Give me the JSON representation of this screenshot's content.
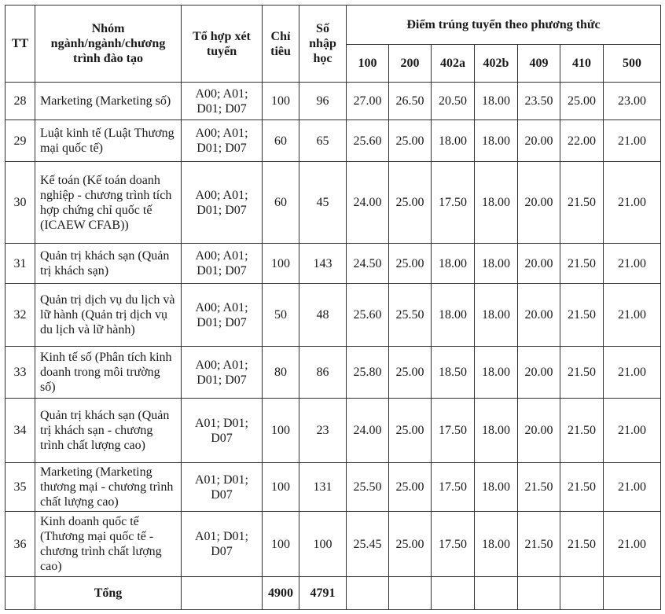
{
  "header": {
    "tt": "TT",
    "program": "Nhóm ngành/ngành/chương trình đào tạo",
    "combo": "Tổ hợp xét tuyển",
    "quota": "Chỉ tiêu",
    "enrolled": "Số nhập học",
    "scores_group": "Điểm trúng tuyển theo phương thức",
    "methods": [
      "100",
      "200",
      "402a",
      "402b",
      "409",
      "410",
      "500"
    ]
  },
  "rows": [
    {
      "tt": "28",
      "program": "Marketing (Marketing số)",
      "combo": "A00; A01; D01; D07",
      "quota": "100",
      "enrolled": "96",
      "scores": [
        "27.00",
        "26.50",
        "20.50",
        "18.00",
        "23.50",
        "25.00",
        "23.00"
      ]
    },
    {
      "tt": "29",
      "program": "Luật kinh tế (Luật Thương mại quốc tế)",
      "combo": "A00; A01; D01; D07",
      "quota": "60",
      "enrolled": "65",
      "scores": [
        "25.60",
        "25.00",
        "18.00",
        "18.00",
        "20.00",
        "22.00",
        "21.00"
      ]
    },
    {
      "tt": "30",
      "program": "Kế toán (Kế toán doanh nghiệp - chương trình tích hợp chứng chỉ quốc tế (ICAEW CFAB))",
      "combo": "A00; A01; D01; D07",
      "quota": "60",
      "enrolled": "45",
      "scores": [
        "24.00",
        "25.00",
        "17.50",
        "18.00",
        "20.00",
        "21.50",
        "21.00"
      ]
    },
    {
      "tt": "31",
      "program": "Quản trị khách sạn (Quản trị khách sạn)",
      "combo": "A00; A01; D01; D07",
      "quota": "100",
      "enrolled": "143",
      "scores": [
        "24.50",
        "25.00",
        "18.00",
        "18.00",
        "20.00",
        "21.50",
        "21.00"
      ]
    },
    {
      "tt": "32",
      "program": "Quản trị dịch vụ du lịch và lữ hành (Quản trị dịch vụ du lịch và lữ hành)",
      "combo": "A00; A01; D01; D07",
      "quota": "50",
      "enrolled": "48",
      "scores": [
        "25.60",
        "25.50",
        "18.00",
        "18.00",
        "20.00",
        "21.50",
        "21.00"
      ]
    },
    {
      "tt": "33",
      "program": "Kinh tế số (Phân tích kinh doanh trong môi trường số)",
      "combo": "A00; A01; D01; D07",
      "quota": "80",
      "enrolled": "86",
      "scores": [
        "25.80",
        "25.00",
        "18.50",
        "18.00",
        "20.00",
        "21.50",
        "21.00"
      ]
    },
    {
      "tt": "34",
      "program": "Quản trị khách sạn (Quản trị khách sạn - chương trình chất lượng cao)",
      "combo": "A01; D01; D07",
      "quota": "100",
      "enrolled": "23",
      "scores": [
        "24.00",
        "25.00",
        "17.50",
        "18.00",
        "20.00",
        "21.50",
        "21.00"
      ]
    },
    {
      "tt": "35",
      "program": "Marketing (Marketing thương mại - chương trình chất lượng cao)",
      "combo": "A01; D01; D07",
      "quota": "100",
      "enrolled": "131",
      "scores": [
        "25.50",
        "25.00",
        "17.50",
        "18.00",
        "21.50",
        "21.50",
        "21.00"
      ]
    },
    {
      "tt": "36",
      "program": "Kinh doanh quốc tế (Thương mại quốc tế - chương trình chất lượng cao)",
      "combo": "A01; D01; D07",
      "quota": "100",
      "enrolled": "100",
      "scores": [
        "25.45",
        "25.00",
        "17.50",
        "18.00",
        "21.50",
        "21.50",
        "21.00"
      ]
    }
  ],
  "total": {
    "label": "Tổng",
    "quota": "4900",
    "enrolled": "4791"
  }
}
